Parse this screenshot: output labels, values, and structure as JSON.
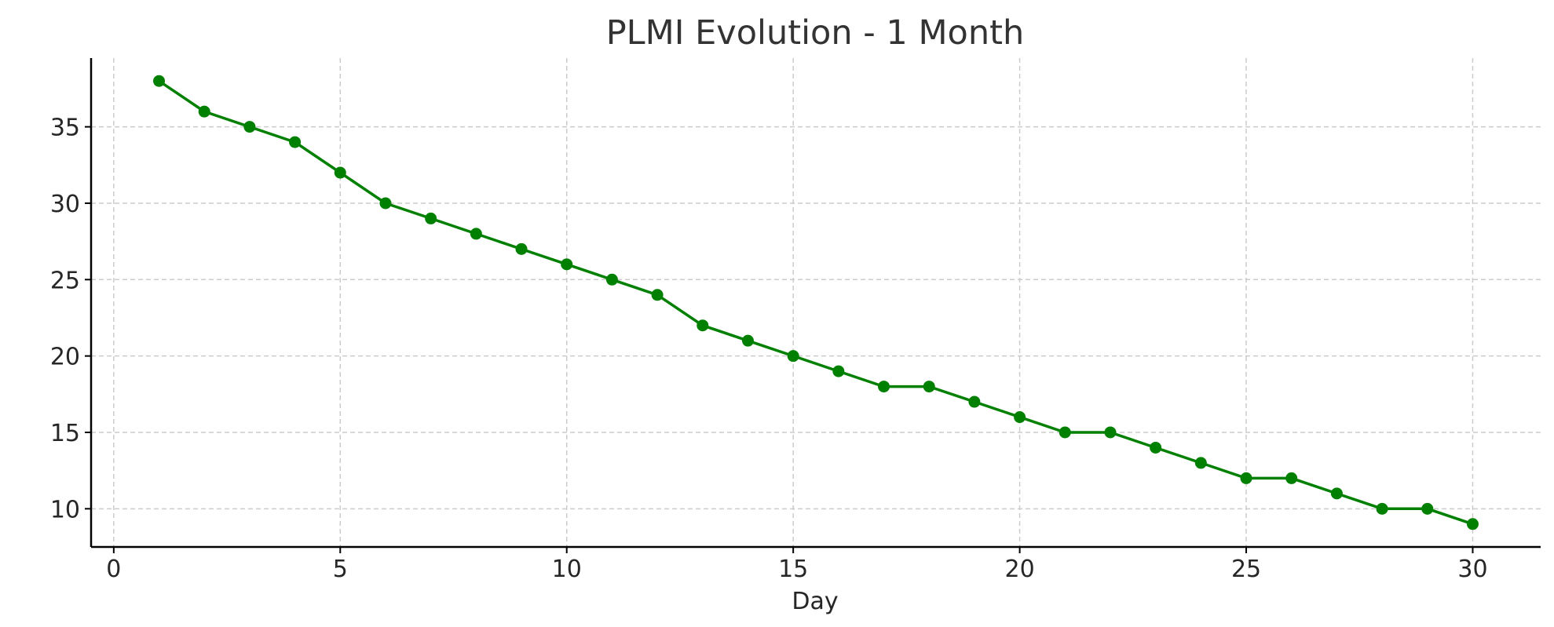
{
  "chart_data": {
    "type": "line",
    "title": "PLMI Evolution - 1 Month",
    "xlabel": "Day",
    "ylabel": "",
    "xlim": [
      -0.5,
      31.5
    ],
    "ylim": [
      7.5,
      39.5
    ],
    "xticks": [
      0,
      5,
      10,
      15,
      20,
      25,
      30
    ],
    "yticks": [
      10,
      15,
      20,
      25,
      30,
      35
    ],
    "grid": true,
    "color": "#008000",
    "series": [
      {
        "x": [
          1,
          2,
          3,
          4,
          5,
          6,
          7,
          8,
          9,
          10,
          11,
          12,
          13,
          14,
          15,
          16,
          17,
          18,
          19,
          20,
          21,
          22,
          23,
          24,
          25,
          26,
          27,
          28,
          29,
          30
        ],
        "values": [
          38,
          36,
          35,
          34,
          32,
          30,
          29,
          28,
          27,
          26,
          25,
          24,
          22,
          21,
          20,
          19,
          18,
          18,
          17,
          16,
          15,
          15,
          14,
          13,
          12,
          12,
          11,
          10,
          10,
          9
        ]
      }
    ]
  }
}
